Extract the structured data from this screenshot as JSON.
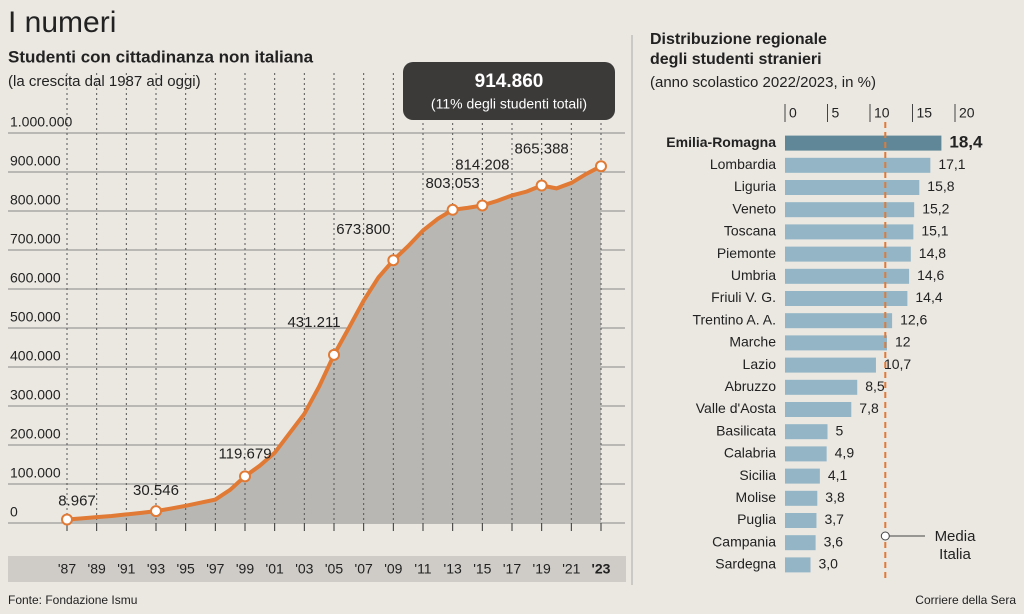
{
  "header": {
    "title": "I numeri"
  },
  "footer": {
    "source": "Fonte: Fondazione Ismu",
    "credit": "Corriere della Sera"
  },
  "chart_data": [
    {
      "type": "line",
      "title": "Studenti con cittadinanza non italiana",
      "subtitle": "(la crescita dal 1987 ad oggi)",
      "annotation": "(11% degli studenti totali)",
      "x": [
        1987,
        1988,
        1989,
        1990,
        1991,
        1992,
        1993,
        1994,
        1995,
        1996,
        1997,
        1998,
        1999,
        2000,
        2001,
        2002,
        2003,
        2004,
        2005,
        2006,
        2007,
        2008,
        2009,
        2010,
        2011,
        2012,
        2013,
        2014,
        2015,
        2016,
        2017,
        2018,
        2019,
        2020,
        2021,
        2022,
        2023
      ],
      "series": [
        {
          "color": "#e07a35",
          "area_color": "#b9b7b3",
          "values": [
            8967,
            12000,
            15000,
            18000,
            22000,
            26000,
            30546,
            37000,
            44000,
            52000,
            60000,
            85000,
            119679,
            147000,
            180000,
            230000,
            280000,
            350000,
            431211,
            500000,
            570000,
            630000,
            673800,
            710000,
            750000,
            780000,
            803053,
            808000,
            814208,
            826000,
            840000,
            850000,
            865388,
            858000,
            872000,
            895000,
            914860
          ],
          "value_labels": [
            "8.967",
            null,
            null,
            null,
            null,
            null,
            "30.546",
            null,
            null,
            null,
            null,
            null,
            "119.679",
            null,
            null,
            null,
            null,
            null,
            "431.211",
            null,
            null,
            null,
            "673.800",
            null,
            null,
            null,
            "803.053",
            null,
            "814.208",
            null,
            null,
            null,
            "865.388",
            null,
            null,
            null,
            "914.860"
          ]
        }
      ],
      "xlim": [
        1987,
        2023
      ],
      "xticks": [
        {
          "value": 1987,
          "label": "'87"
        },
        {
          "value": 1989,
          "label": "'89"
        },
        {
          "value": 1991,
          "label": "'91"
        },
        {
          "value": 1993,
          "label": "'93"
        },
        {
          "value": 1995,
          "label": "'95"
        },
        {
          "value": 1997,
          "label": "'97"
        },
        {
          "value": 1999,
          "label": "'99"
        },
        {
          "value": 2001,
          "label": "'01"
        },
        {
          "value": 2003,
          "label": "'03"
        },
        {
          "value": 2005,
          "label": "'05"
        },
        {
          "value": 2007,
          "label": "'07"
        },
        {
          "value": 2009,
          "label": "'09"
        },
        {
          "value": 2011,
          "label": "'11"
        },
        {
          "value": 2013,
          "label": "'13"
        },
        {
          "value": 2015,
          "label": "'15"
        },
        {
          "value": 2017,
          "label": "'17"
        },
        {
          "value": 2019,
          "label": "'19"
        },
        {
          "value": 2021,
          "label": "'21"
        },
        {
          "value": 2023,
          "label": "'23"
        }
      ],
      "ylim": [
        0,
        1000000
      ],
      "yticks": [
        0,
        {
          "value": 100000,
          "label": "100.000"
        },
        {
          "value": 200000,
          "label": "200.000"
        },
        {
          "value": 300000,
          "label": "300.000"
        },
        {
          "value": 400000,
          "label": "400.000"
        },
        {
          "value": 500000,
          "label": "500.000"
        },
        {
          "value": 600000,
          "label": "600.000"
        },
        {
          "value": 700000,
          "label": "700.000"
        },
        {
          "value": 800000,
          "label": "800.000"
        },
        {
          "value": 900000,
          "label": "900.000"
        },
        {
          "value": 1000000,
          "label": "1.000.000"
        }
      ],
      "grid": true
    },
    {
      "type": "hbar",
      "title": [
        "Distribuzione regionale",
        "degli studenti stranieri"
      ],
      "subtitle": "(anno scolastico 2022/2023, in %)",
      "categories": [
        "Emilia-Romagna",
        "Lombardia",
        "Liguria",
        "Veneto",
        "Toscana",
        "Piemonte",
        "Umbria",
        "Friuli V. G.",
        "Trentino A. A.",
        "Marche",
        "Lazio",
        "Abruzzo",
        "Valle d'Aosta",
        "Basilicata",
        "Calabria",
        "Sicilia",
        "Molise",
        "Puglia",
        "Campania",
        "Sardegna"
      ],
      "values": [
        18.4,
        17.1,
        15.8,
        15.2,
        15.1,
        14.8,
        14.6,
        14.4,
        12.6,
        12,
        10.7,
        8.5,
        7.8,
        5,
        4.9,
        4.1,
        3.8,
        3.7,
        3.6,
        3.0
      ],
      "value_labels": [
        "18,4",
        "17,1",
        "15,8",
        "15,2",
        "15,1",
        "14,8",
        "14,6",
        "14,4",
        "12,6",
        "12",
        "10,7",
        "8,5",
        "7,8",
        "5",
        "4,9",
        "4,1",
        "3,8",
        "3,7",
        "3,6",
        "3,0"
      ],
      "color": "#93b5c6",
      "highlight_color": "#5f8797",
      "xlim": [
        0,
        20
      ],
      "xticks": [
        0,
        5,
        10,
        15,
        20
      ],
      "average": {
        "label": "Media Italia",
        "value": 11.8,
        "color": "#e07a35"
      }
    }
  ]
}
